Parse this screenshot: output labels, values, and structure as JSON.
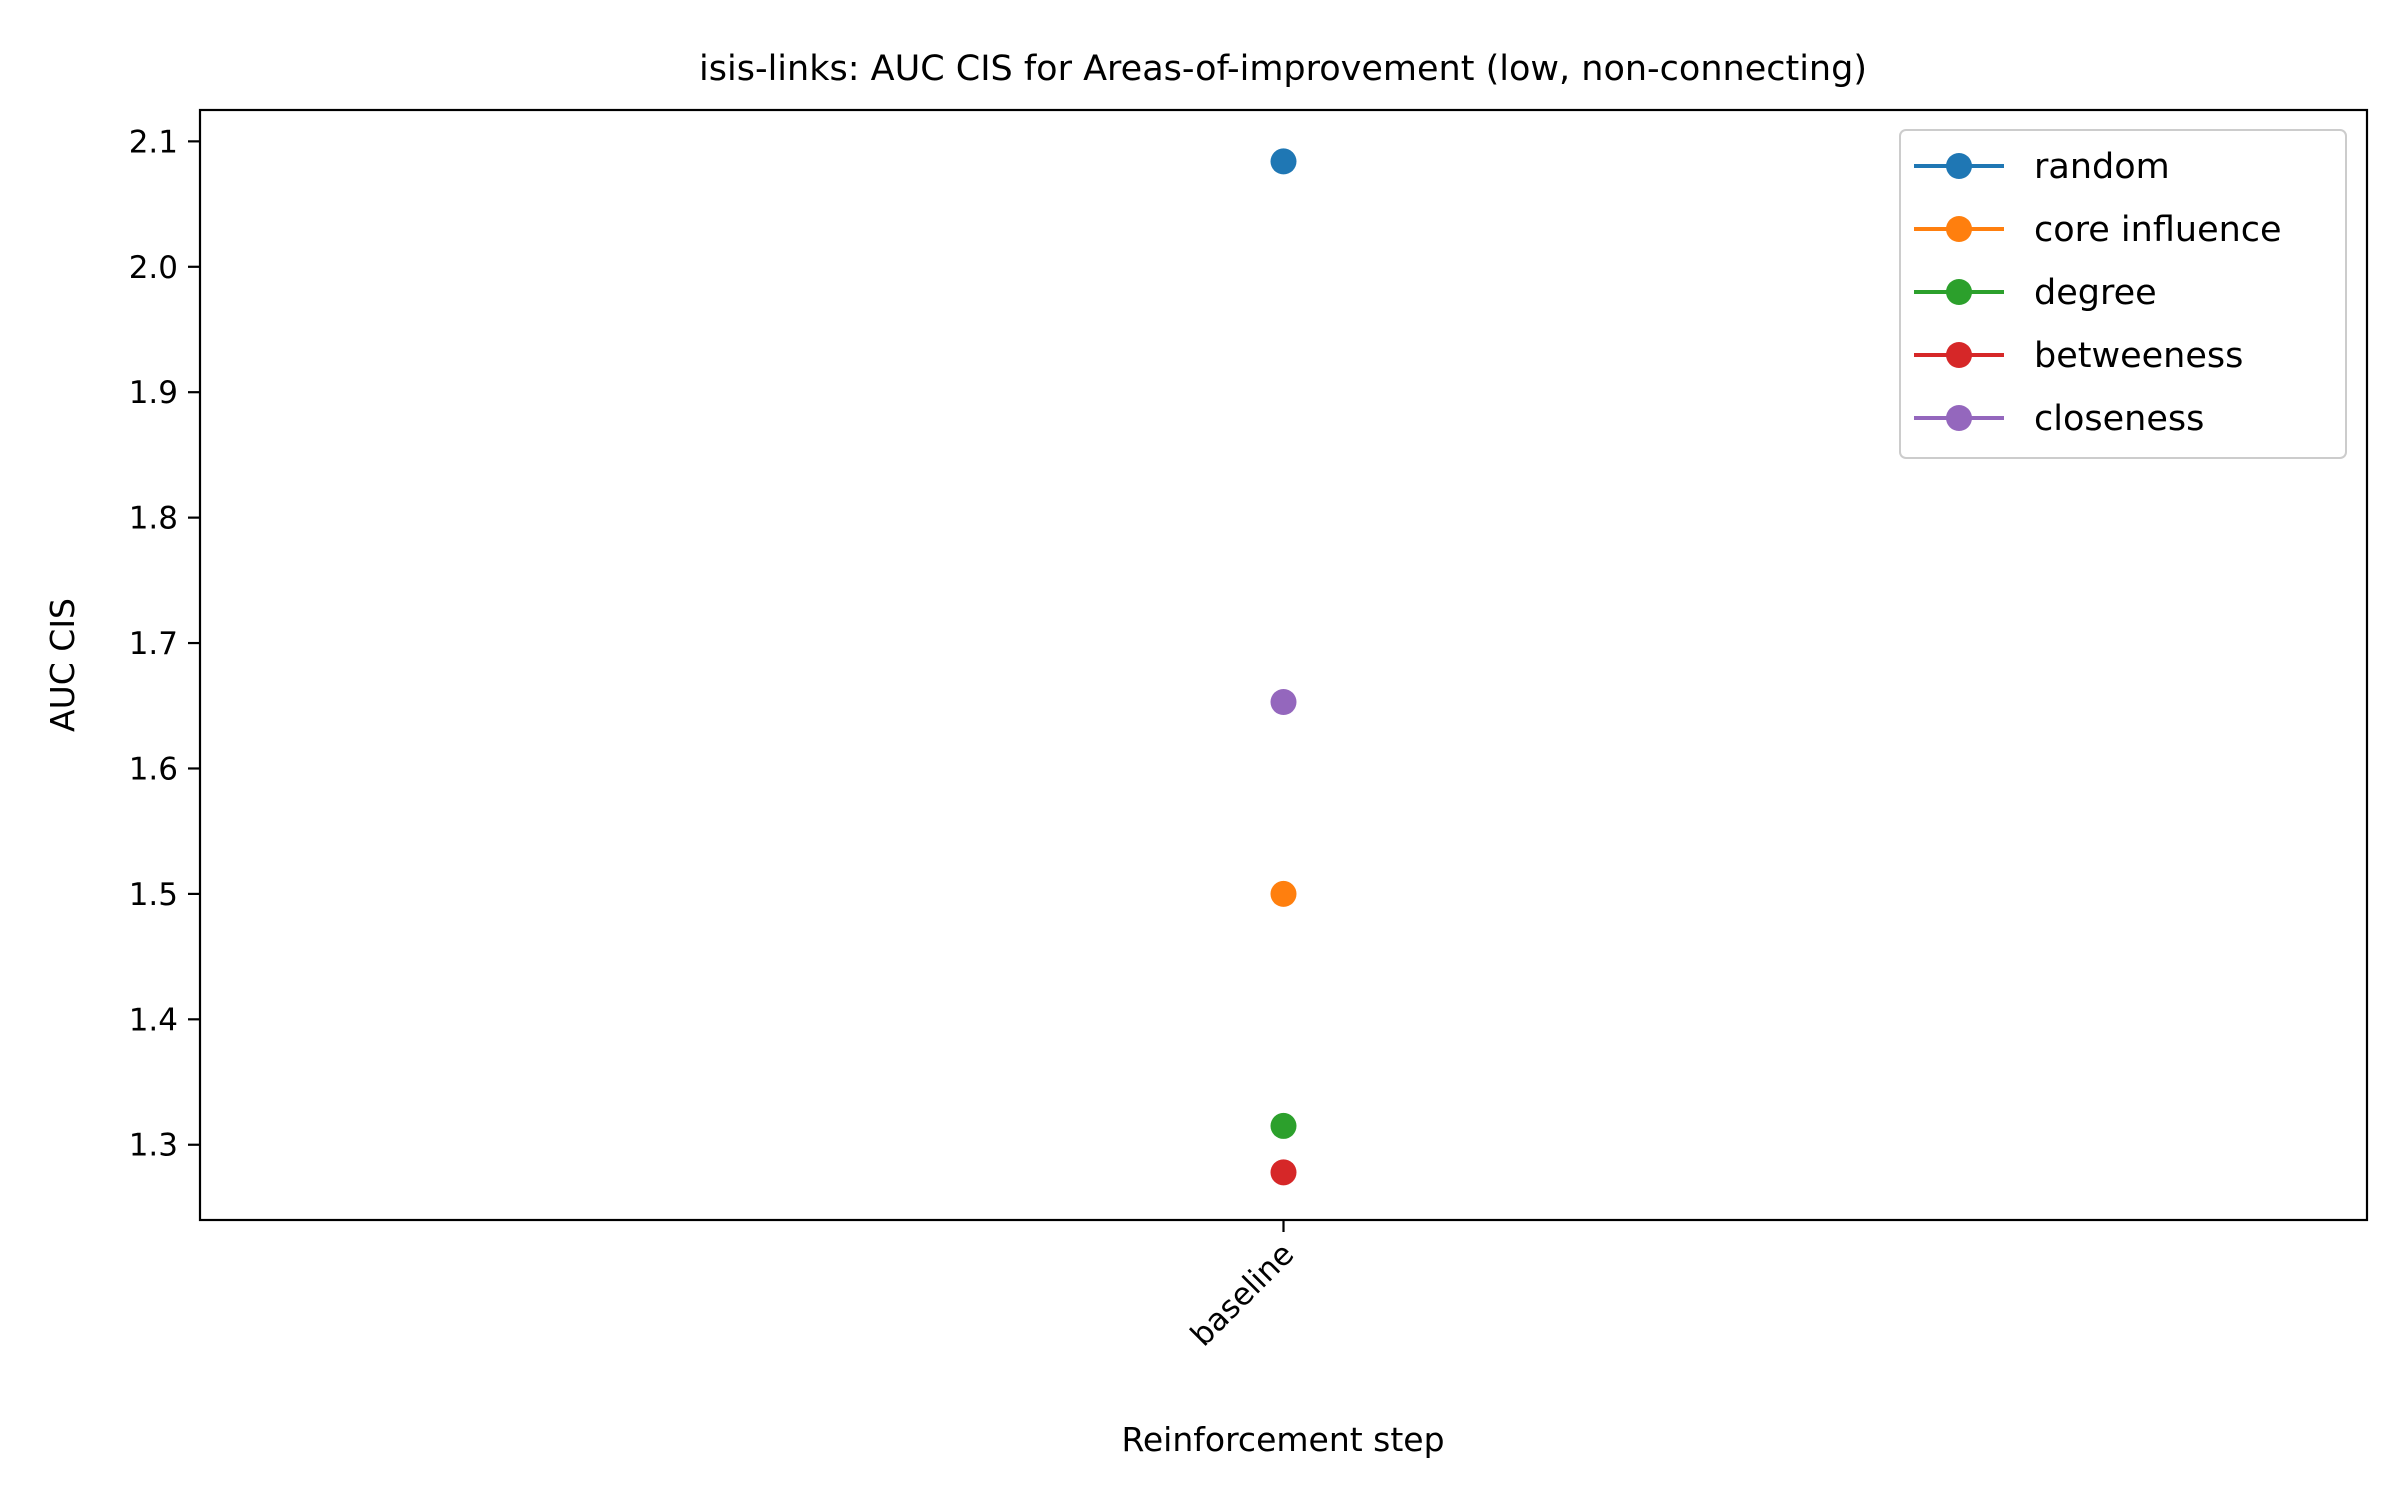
{
  "chart_data": {
    "type": "line",
    "title": "isis-links: AUC CIS for Areas-of-improvement (low, non-connecting)",
    "xlabel": "Reinforcement step",
    "ylabel": "AUC CIS",
    "categories": [
      "baseline"
    ],
    "ylim": [
      1.24,
      2.125
    ],
    "yticks": [
      1.3,
      1.4,
      1.5,
      1.6,
      1.7,
      1.8,
      1.9,
      2.0,
      2.1
    ],
    "grid": false,
    "legend_position": "upper right",
    "series": [
      {
        "name": "random",
        "color": "#1f77b4",
        "values": [
          2.084
        ]
      },
      {
        "name": "core influence",
        "color": "#ff7f0e",
        "values": [
          1.5
        ]
      },
      {
        "name": "degree",
        "color": "#2ca02c",
        "values": [
          1.315
        ]
      },
      {
        "name": "betweeness",
        "color": "#d62728",
        "values": [
          1.278
        ]
      },
      {
        "name": "closeness",
        "color": "#9467bd",
        "values": [
          1.653
        ]
      }
    ]
  }
}
